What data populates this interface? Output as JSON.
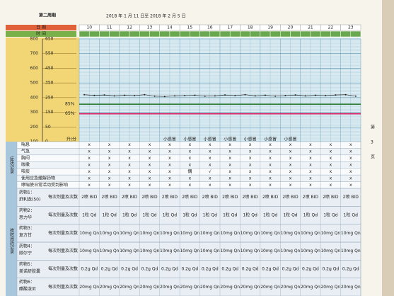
{
  "header": {
    "title": "第二周期",
    "date_range": "2018 年 1 月 11 日至 2018 年 2 月 5 日"
  },
  "row_labels": {
    "date": "日 期",
    "time": "时 间"
  },
  "days": [
    "10",
    "11",
    "12",
    "13",
    "14",
    "15",
    "16",
    "17",
    "18",
    "19",
    "20",
    "21",
    "22",
    "23"
  ],
  "chart": {
    "ylim": [
      100,
      800
    ],
    "yticks": [
      800,
      700,
      600,
      500,
      400,
      300,
      200,
      100
    ],
    "right_labels": [
      "650",
      "550",
      "450",
      "350",
      "250",
      "150",
      "50",
      "0"
    ],
    "unit": "升/分",
    "peak_flow": [
      420,
      415,
      418,
      412,
      416,
      414,
      420,
      410,
      408,
      412,
      414,
      416,
      410,
      412,
      418,
      414,
      420,
      412,
      416,
      410,
      414,
      418,
      412,
      416,
      414,
      418,
      420,
      410
    ],
    "zones": [
      {
        "label": "85%",
        "value": 355,
        "color": "#2e7d32"
      },
      {
        "label": "65%",
        "value": 290,
        "color": "#d81b60"
      }
    ],
    "notes": [
      null,
      null,
      null,
      null,
      "小感冒",
      "小感冒",
      "小感冒",
      "小感冒",
      "小感冒",
      "小感冒",
      "小感冒",
      null,
      null,
      null
    ]
  },
  "symptoms": {
    "group": "症状记录",
    "rows": [
      {
        "name": "喘息",
        "cells": [
          "x",
          "x",
          "x",
          "x",
          "x",
          "x",
          "x",
          "x",
          "x",
          "x",
          "x",
          "x",
          "x",
          "x"
        ]
      },
      {
        "name": "气急",
        "cells": [
          "x",
          "x",
          "x",
          "x",
          "x",
          "x",
          "x",
          "x",
          "x",
          "x",
          "x",
          "x",
          "x",
          "x"
        ]
      },
      {
        "name": "胸闷",
        "cells": [
          "x",
          "x",
          "x",
          "x",
          "x",
          "x",
          "x",
          "x",
          "x",
          "x",
          "x",
          "x",
          "x",
          "x"
        ]
      },
      {
        "name": "咳嗽",
        "cells": [
          "x",
          "x",
          "x",
          "x",
          "x",
          "x",
          "x",
          "x",
          "x",
          "x",
          "x",
          "x",
          "x",
          "x"
        ]
      },
      {
        "name": "咳痰",
        "cells": [
          "x",
          "x",
          "x",
          "x",
          "x",
          "偶",
          "√",
          "x",
          "x",
          "x",
          "x",
          "x",
          "x",
          "x"
        ]
      },
      {
        "name": "使用应急缓解药物",
        "cells": [
          "x",
          "x",
          "x",
          "x",
          "x",
          "x",
          "x",
          "x",
          "x",
          "x",
          "x",
          "x",
          "x",
          "x"
        ]
      },
      {
        "name": "哮喘使日常活动受到影响",
        "cells": [
          "x",
          "x",
          "x",
          "x",
          "x",
          "x",
          "x",
          "x",
          "x",
          "x",
          "x",
          "x",
          "x",
          "x"
        ]
      }
    ]
  },
  "meds": {
    "group": "按时用药记录",
    "dose_label": "每次剂量及次数",
    "rows": [
      {
        "name": "药物1：",
        "drug": "舒利迭(50)",
        "cells": [
          "2喷 BID",
          "2喷 BID",
          "2喷 BID",
          "2喷 BID",
          "2喷 BID",
          "2喷 BID",
          "2喷 BID",
          "2喷 BID",
          "2喷 BID",
          "2喷 BID",
          "2喷 BID",
          "2喷 BID",
          "2喷 BID",
          "2喷 BID"
        ]
      },
      {
        "name": "药物2：",
        "drug": "思力华",
        "cells": [
          "1粒 Qd",
          "1粒 Qd",
          "1粒 Qd",
          "1粒 Qd",
          "1粒 Qd",
          "1粒 Qd",
          "1粒 Qd",
          "1粒 Qd",
          "1粒 Qd",
          "1粒 Qd",
          "1粒 Qd",
          "1粒 Qd",
          "1粒 Qd",
          "1粒 Qd"
        ]
      },
      {
        "name": "药物3：",
        "drug": "复方甘",
        "cells": [
          "10mg Qn",
          "10mg Qn",
          "10mg Qn",
          "10mg Qn",
          "10mg Qn",
          "10mg Qn",
          "10mg Qn",
          "10mg Qn",
          "10mg Qn",
          "10mg Qn",
          "10mg Qn",
          "10mg Qn",
          "10mg Qn",
          "10mg Qn"
        ]
      },
      {
        "name": "药物4：",
        "drug": "顺尔宁",
        "cells": [
          "10mg Qn",
          "10mg Qn",
          "10mg Qn",
          "10mg Qn",
          "10mg Qn",
          "10mg Qn",
          "10mg Qn",
          "10mg Qn",
          "10mg Qn",
          "10mg Qn",
          "10mg Qn",
          "10mg Qn",
          "10mg Qn",
          "10mg Qn"
        ]
      },
      {
        "name": "药物5：",
        "drug": "美诺舒胶囊",
        "cells": [
          "0.2g Qd",
          "0.2g Qd",
          "0.2g Qd",
          "0.2g Qd",
          "0.2g Qd",
          "0.2g Qd",
          "0.2g Qd",
          "0.2g Qd",
          "0.2g Qd",
          "0.2g Qd",
          "0.2g Qd",
          "0.2g Qd",
          "0.2g Qd",
          "0.2g Qd"
        ]
      },
      {
        "name": "药物6：",
        "drug": "醋酸泼尼",
        "cells": [
          "20mg Qn",
          "20mg Qn",
          "20mg Qn",
          "20mg Qn",
          "20mg Qn",
          "20mg Qn",
          "20mg Qn",
          "20mg Qn",
          "20mg Qn",
          "20mg Qn",
          "20mg Qn",
          "20mg Qn",
          "20mg Qn",
          "20mg Qn"
        ]
      }
    ]
  },
  "page": {
    "top": "第",
    "number": "3",
    "bottom": "页"
  }
}
